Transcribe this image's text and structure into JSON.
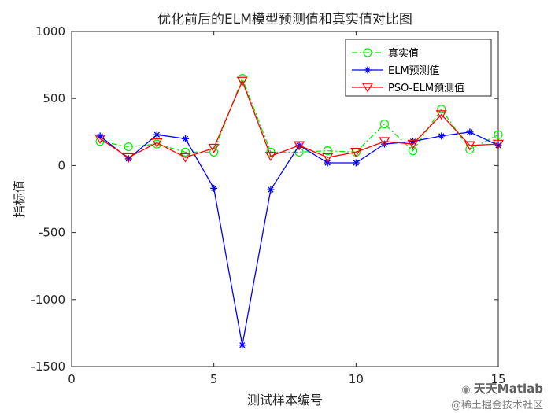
{
  "chart_data": {
    "type": "line",
    "title": "优化前后的ELM模型预测值和真实值对比图",
    "xlabel": "测试样本编号",
    "ylabel": "指标值",
    "xlim": [
      0,
      15
    ],
    "ylim": [
      -1500,
      1000
    ],
    "xticks": [
      0,
      5,
      10,
      15
    ],
    "yticks": [
      -1500,
      -1000,
      -500,
      0,
      500,
      1000
    ],
    "xtick_labels": [
      "0",
      "5",
      "10",
      "15"
    ],
    "ytick_labels": [
      "-1500",
      "-1000",
      "-500",
      "0",
      "500",
      "1000"
    ],
    "grid": false,
    "legend_position": "top-right",
    "x": [
      1,
      2,
      3,
      4,
      5,
      6,
      7,
      8,
      9,
      10,
      11,
      12,
      13,
      14,
      15
    ],
    "series": [
      {
        "name": "真实值",
        "color": "#00ee00",
        "line_style": "dash-dot",
        "marker": "circle",
        "values": [
          180,
          140,
          160,
          100,
          100,
          650,
          100,
          100,
          110,
          100,
          310,
          110,
          420,
          120,
          230
        ]
      },
      {
        "name": "ELM预测值",
        "color": "#0000ff",
        "line_style": "solid",
        "marker": "asterisk",
        "values": [
          220,
          50,
          230,
          200,
          -170,
          -1340,
          -180,
          150,
          20,
          20,
          160,
          180,
          220,
          250,
          150
        ]
      },
      {
        "name": "PSO-ELM预测值",
        "color": "#ff0000",
        "line_style": "solid",
        "marker": "triangle-down",
        "values": [
          200,
          60,
          170,
          60,
          130,
          630,
          70,
          150,
          60,
          100,
          180,
          160,
          380,
          150,
          160
        ]
      }
    ]
  },
  "watermark": {
    "line1": "天天Matlab",
    "line2": "@稀土掘金技术社区",
    "icon": "wechat-icon"
  }
}
